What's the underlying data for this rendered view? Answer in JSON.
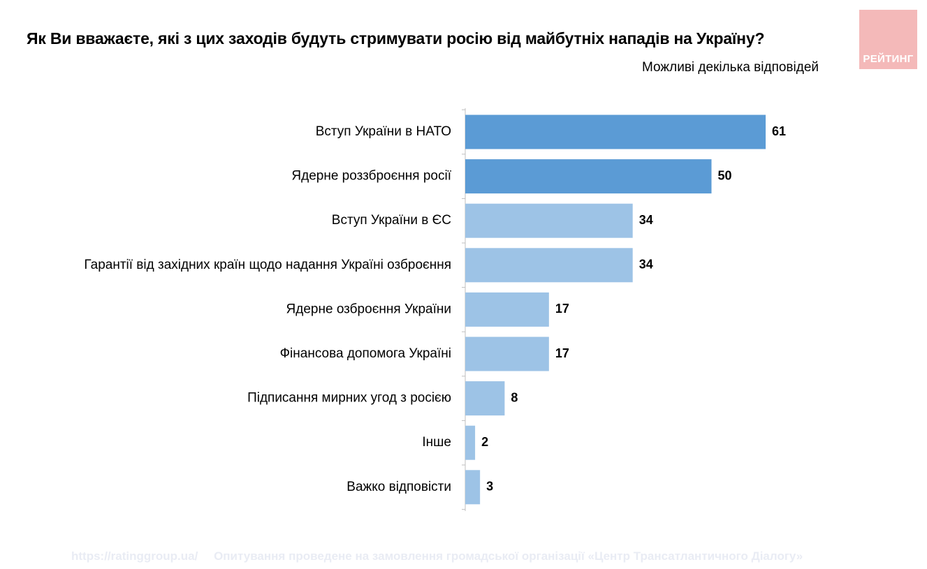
{
  "header": {
    "title": "Як Ви вважаєте, які з цих заходів будуть стримувати росію від майбутніх нападів на Україну?",
    "subtitle": "Можливі декілька відповідей"
  },
  "logo": {
    "text": "РЕЙТИНГ",
    "color": "#f4b9b9"
  },
  "footer": {
    "url": "https://ratinggroup.ua/",
    "note": "Опитування проведене на замовлення громадської організації «Центр Трансатлантичного Діалогу»"
  },
  "colors": {
    "highlight_bar": "#5b9bd5",
    "default_bar": "#9dc3e6",
    "axis": "#bfbfbf"
  },
  "chart_data": {
    "type": "bar",
    "orientation": "horizontal",
    "categories": [
      "Вступ України в НАТО",
      "Ядерне роззброєння росії",
      "Вступ України в ЄС",
      "Гарантії від західних країн щодо надання Україні озброєння",
      "Ядерне озброєння України",
      "Фінансова допомога Україні",
      "Підписання мирних угод з росією",
      "Інше",
      "Важко відповісти"
    ],
    "values": [
      61,
      50,
      34,
      34,
      17,
      17,
      8,
      2,
      3
    ],
    "highlighted": [
      true,
      true,
      false,
      false,
      false,
      false,
      false,
      false,
      false
    ],
    "xlim": [
      0,
      70
    ],
    "data_labels": true,
    "grid": false,
    "legend": "none"
  }
}
